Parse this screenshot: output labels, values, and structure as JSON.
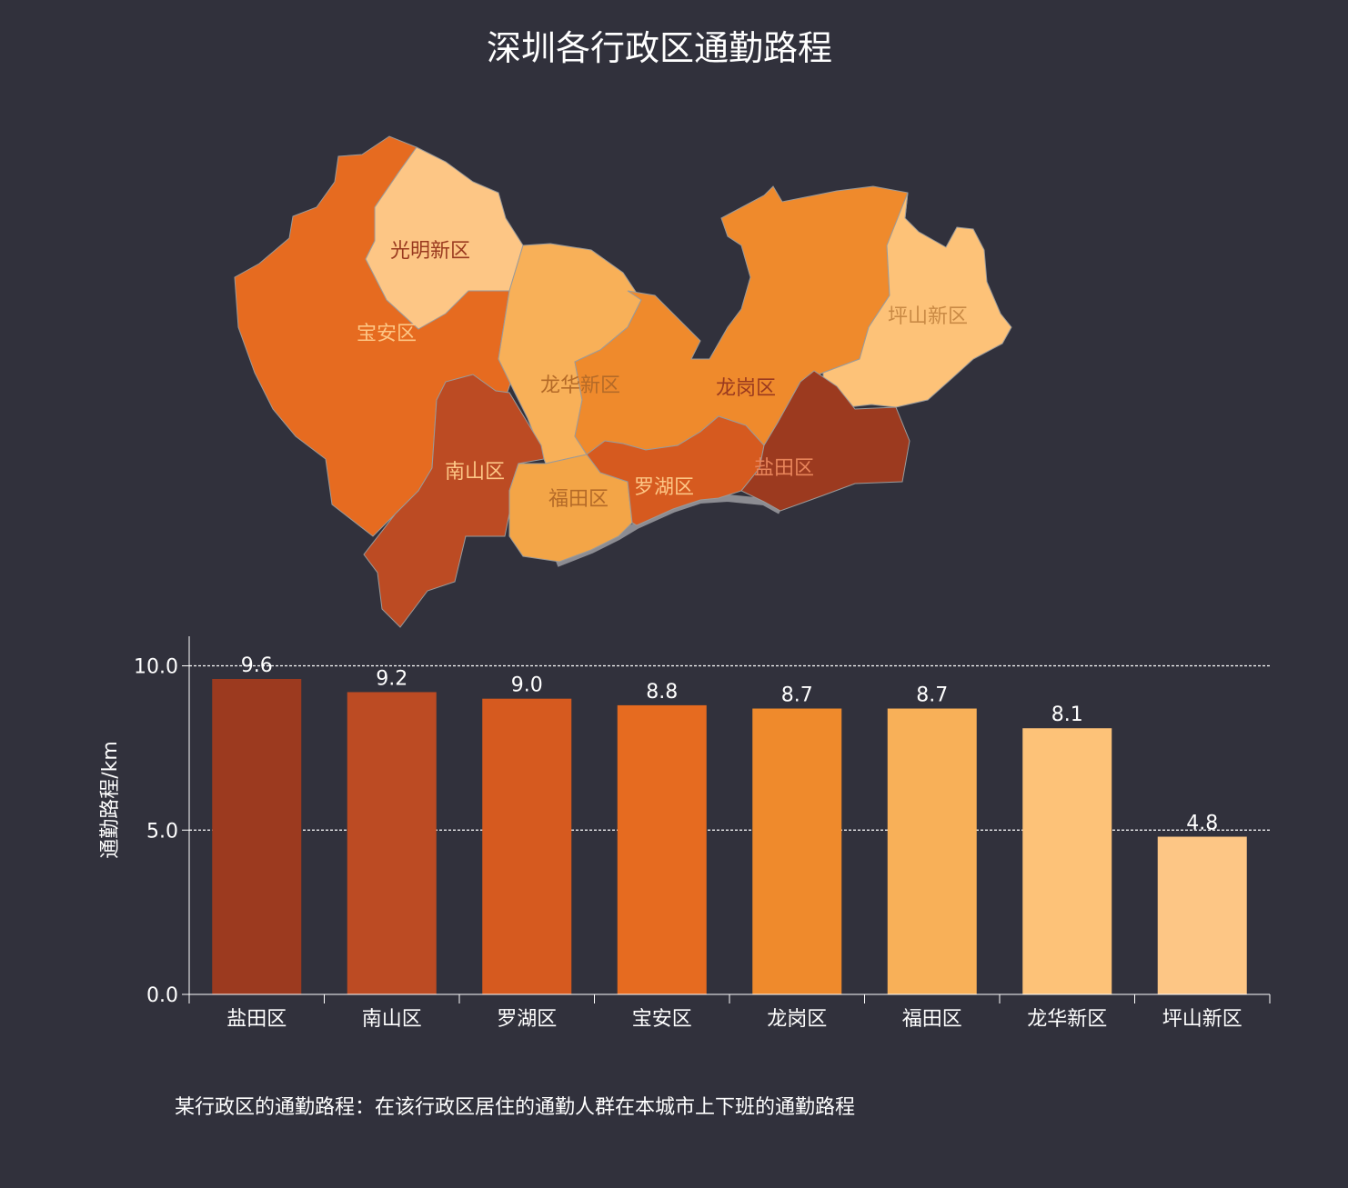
{
  "title": "深圳各行政区通勤路程",
  "footnote": "某行政区的通勤路程：在该行政区居住的通勤人群在本城市上下班的通勤路程",
  "map": {
    "regions": [
      {
        "name": "光明新区",
        "color": "#fdc685",
        "label_color": "#9a3a1f"
      },
      {
        "name": "宝安区",
        "color": "#e66b20",
        "label_color": "#fdc685"
      },
      {
        "name": "龙华新区",
        "color": "#f8b058",
        "label_color": "#b46a28"
      },
      {
        "name": "龙岗区",
        "color": "#ef8a2c",
        "label_color": "#9a3a1f"
      },
      {
        "name": "坪山新区",
        "color": "#fdc278",
        "label_color": "#c98a45"
      },
      {
        "name": "南山区",
        "color": "#bc4b23",
        "label_color": "#fdc685"
      },
      {
        "name": "福田区",
        "color": "#f3a547",
        "label_color": "#b46a28"
      },
      {
        "name": "罗湖区",
        "color": "#d65a1f",
        "label_color": "#fdc685"
      },
      {
        "name": "盐田区",
        "color": "#9c3a1f",
        "label_color": "#e8845a"
      }
    ]
  },
  "chart_data": {
    "type": "bar",
    "title": "深圳各行政区通勤路程",
    "categories": [
      "盐田区",
      "南山区",
      "罗湖区",
      "宝安区",
      "龙岗区",
      "福田区",
      "龙华新区",
      "坪山新区"
    ],
    "values": [
      9.6,
      9.2,
      9.0,
      8.8,
      8.7,
      8.7,
      8.1,
      4.8
    ],
    "value_labels": [
      "9.6",
      "9.2",
      "9.0",
      "8.8",
      "8.7",
      "8.7",
      "8.1",
      "4.8"
    ],
    "colors": [
      "#9c3a1f",
      "#bc4b23",
      "#d65a1f",
      "#e66b20",
      "#ef8a2c",
      "#f8b058",
      "#fdc278",
      "#fdc685"
    ],
    "ylabel": "通勤路程/km",
    "yticks": [
      0,
      5,
      10
    ],
    "ytick_labels": [
      "0.0",
      "5.0",
      "10.0"
    ],
    "ylim": [
      0,
      10.9
    ],
    "grid": "horizontal dashed at 5.0 and 10.0"
  }
}
